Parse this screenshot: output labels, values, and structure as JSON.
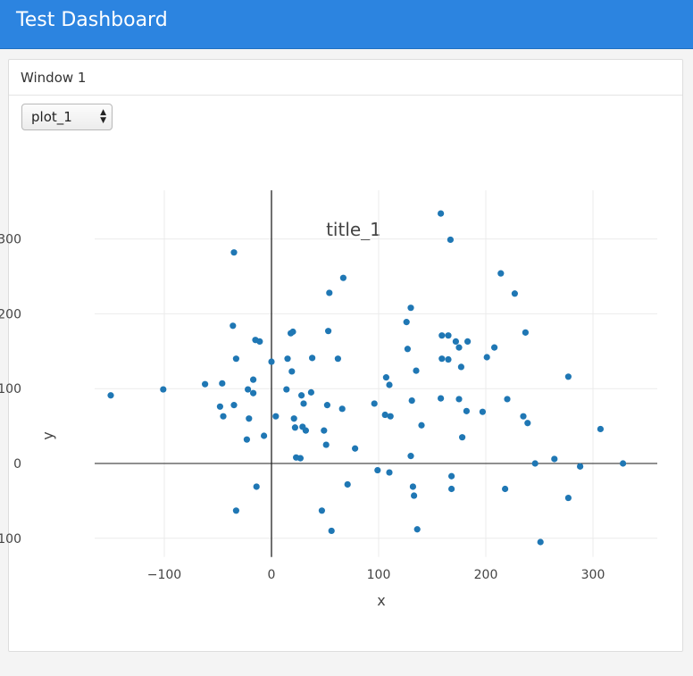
{
  "header": {
    "title": "Test Dashboard"
  },
  "panel": {
    "title": "Window 1"
  },
  "selector": {
    "value": "plot_1",
    "options": [
      "plot_1"
    ]
  },
  "colors": {
    "header": "#2c84e0",
    "marker": "#1f77b4"
  },
  "chart_data": {
    "type": "scatter",
    "title": "title_1",
    "xlabel": "x",
    "ylabel": "y",
    "xlim": [
      -165,
      360
    ],
    "ylim": [
      -125,
      365
    ],
    "xticks": [
      -100,
      0,
      100,
      200,
      300
    ],
    "yticks": [
      -100,
      0,
      100,
      200,
      300
    ],
    "grid": true,
    "points": [
      [
        -150,
        91
      ],
      [
        -101,
        99
      ],
      [
        -62,
        106
      ],
      [
        -48,
        76
      ],
      [
        -45,
        63
      ],
      [
        -46,
        107
      ],
      [
        -36,
        184
      ],
      [
        -35,
        282
      ],
      [
        -35,
        78
      ],
      [
        -33,
        140
      ],
      [
        -33,
        -63
      ],
      [
        -23,
        32
      ],
      [
        -22,
        99
      ],
      [
        -21,
        60
      ],
      [
        -17,
        94
      ],
      [
        -17,
        112
      ],
      [
        -15,
        165
      ],
      [
        -14,
        -31
      ],
      [
        -11,
        163
      ],
      [
        -7,
        37
      ],
      [
        0,
        136
      ],
      [
        4,
        63
      ],
      [
        14,
        99
      ],
      [
        15,
        140
      ],
      [
        18,
        174
      ],
      [
        19,
        123
      ],
      [
        20,
        176
      ],
      [
        21,
        60
      ],
      [
        22,
        48
      ],
      [
        23,
        8
      ],
      [
        27,
        7
      ],
      [
        28,
        91
      ],
      [
        29,
        49
      ],
      [
        30,
        80
      ],
      [
        32,
        44
      ],
      [
        37,
        95
      ],
      [
        38,
        141
      ],
      [
        47,
        -63
      ],
      [
        49,
        44
      ],
      [
        51,
        25
      ],
      [
        52,
        78
      ],
      [
        53,
        177
      ],
      [
        54,
        228
      ],
      [
        56,
        -90
      ],
      [
        62,
        140
      ],
      [
        66,
        73
      ],
      [
        67,
        248
      ],
      [
        71,
        -28
      ],
      [
        78,
        20
      ],
      [
        96,
        80
      ],
      [
        99,
        -9
      ],
      [
        106,
        65
      ],
      [
        107,
        115
      ],
      [
        110,
        105
      ],
      [
        110,
        -12
      ],
      [
        111,
        63
      ],
      [
        126,
        189
      ],
      [
        127,
        153
      ],
      [
        130,
        208
      ],
      [
        130,
        10
      ],
      [
        131,
        84
      ],
      [
        132,
        -31
      ],
      [
        133,
        -43
      ],
      [
        135,
        124
      ],
      [
        136,
        -88
      ],
      [
        140,
        51
      ],
      [
        158,
        334
      ],
      [
        158,
        87
      ],
      [
        159,
        171
      ],
      [
        159,
        140
      ],
      [
        165,
        171
      ],
      [
        165,
        139
      ],
      [
        167,
        299
      ],
      [
        168,
        -17
      ],
      [
        168,
        -34
      ],
      [
        172,
        163
      ],
      [
        175,
        155
      ],
      [
        175,
        86
      ],
      [
        177,
        129
      ],
      [
        178,
        35
      ],
      [
        182,
        70
      ],
      [
        183,
        163
      ],
      [
        197,
        69
      ],
      [
        201,
        142
      ],
      [
        208,
        155
      ],
      [
        214,
        254
      ],
      [
        218,
        -34
      ],
      [
        220,
        86
      ],
      [
        227,
        227
      ],
      [
        235,
        63
      ],
      [
        237,
        175
      ],
      [
        239,
        54
      ],
      [
        246,
        0
      ],
      [
        251,
        -105
      ],
      [
        264,
        6
      ],
      [
        277,
        -46
      ],
      [
        277,
        116
      ],
      [
        288,
        -4
      ],
      [
        307,
        46
      ],
      [
        328,
        0
      ]
    ]
  }
}
